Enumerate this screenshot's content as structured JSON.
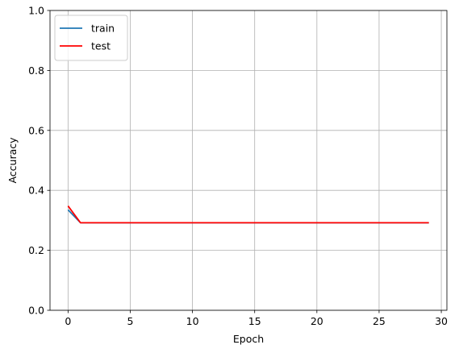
{
  "chart_data": {
    "type": "line",
    "title": "",
    "xlabel": "Epoch",
    "ylabel": "Accuracy",
    "xlim": [
      -1.45,
      30.45
    ],
    "ylim": [
      0,
      1
    ],
    "xticks": [
      0,
      5,
      10,
      15,
      20,
      25,
      30
    ],
    "yticks": [
      0.0,
      0.2,
      0.4,
      0.6,
      0.8,
      1.0
    ],
    "xtick_labels": [
      "0",
      "5",
      "10",
      "15",
      "20",
      "25",
      "30"
    ],
    "ytick_labels": [
      "0.0",
      "0.2",
      "0.4",
      "0.6",
      "0.8",
      "1.0"
    ],
    "grid": true,
    "legend_position": "top-left",
    "x": [
      0,
      1,
      2,
      3,
      4,
      5,
      6,
      7,
      8,
      9,
      10,
      11,
      12,
      13,
      14,
      15,
      16,
      17,
      18,
      19,
      20,
      21,
      22,
      23,
      24,
      25,
      26,
      27,
      28,
      29
    ],
    "series": [
      {
        "name": "train",
        "color": "#1f77b4",
        "values": [
          0.335,
          0.292,
          0.292,
          0.292,
          0.292,
          0.292,
          0.292,
          0.292,
          0.292,
          0.292,
          0.292,
          0.292,
          0.292,
          0.292,
          0.292,
          0.292,
          0.292,
          0.292,
          0.292,
          0.292,
          0.292,
          0.292,
          0.292,
          0.292,
          0.292,
          0.292,
          0.292,
          0.292,
          0.292,
          0.292
        ]
      },
      {
        "name": "test",
        "color": "#ff0000",
        "values": [
          0.348,
          0.292,
          0.292,
          0.292,
          0.292,
          0.292,
          0.292,
          0.292,
          0.292,
          0.292,
          0.292,
          0.292,
          0.292,
          0.292,
          0.292,
          0.292,
          0.292,
          0.292,
          0.292,
          0.292,
          0.292,
          0.292,
          0.292,
          0.292,
          0.292,
          0.292,
          0.292,
          0.292,
          0.292,
          0.292
        ]
      }
    ]
  }
}
